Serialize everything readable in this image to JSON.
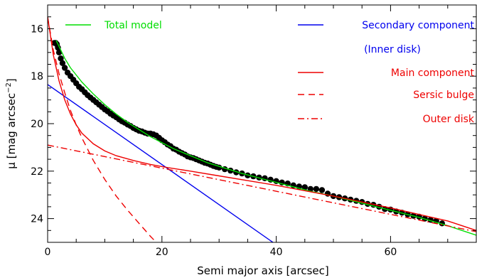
{
  "chart_data": {
    "type": "line",
    "xlabel": "Semi major axis [arcsec]",
    "ylabel_prefix": "μ [mag arcsec",
    "ylabel_exp": "−2",
    "ylabel_suffix": "]",
    "xlim": [
      0,
      75
    ],
    "ylim": [
      25,
      15
    ],
    "y_inverted": true,
    "xticks": [
      0,
      20,
      40,
      60
    ],
    "yticks": [
      16,
      18,
      20,
      22,
      24
    ],
    "x_minor_step": 5,
    "y_minor_step": 0.5,
    "grid": false,
    "legend": [
      {
        "label": "Total model",
        "color": "#00dd00",
        "dash": "solid",
        "position": "top-left"
      },
      {
        "label": "Secondary component",
        "color": "#0000ee",
        "dash": "solid",
        "position": "top-right"
      },
      {
        "label": "(Inner disk)",
        "color": "#0000ee",
        "dash": "none",
        "position": "top-right"
      },
      {
        "label": "Main component",
        "color": "#ee0000",
        "dash": "solid",
        "position": "top-right"
      },
      {
        "label": "Sersic bulge",
        "color": "#ee0000",
        "dash": "dashed",
        "position": "top-right"
      },
      {
        "label": "Outer disk",
        "color": "#ee0000",
        "dash": "dashdot",
        "position": "top-right"
      }
    ],
    "series": [
      {
        "name": "Observed profile",
        "kind": "scatter",
        "color": "#000000",
        "x": [
          1.2,
          1.4,
          1.6,
          1.8,
          2.0,
          2.3,
          2.6,
          3.0,
          3.5,
          4.0,
          4.5,
          5.0,
          5.5,
          6.0,
          6.5,
          7.0,
          7.5,
          8.0,
          8.5,
          9.0,
          9.5,
          10,
          10.5,
          11,
          11.5,
          12,
          12.5,
          13,
          13.5,
          14,
          14.5,
          15,
          15.5,
          16,
          16.5,
          17,
          17.5,
          18,
          18.5,
          19,
          19.5,
          20,
          20.5,
          21,
          21.5,
          22,
          22.5,
          23,
          23.5,
          24,
          24.5,
          25,
          25.5,
          26,
          26.5,
          27,
          27.5,
          28,
          28.5,
          29,
          29.5,
          30,
          31,
          32,
          33,
          34,
          35,
          36,
          37,
          38,
          39,
          40,
          41,
          42,
          43,
          44,
          45,
          46,
          47,
          48,
          49,
          50,
          51,
          52,
          53,
          54,
          55,
          56,
          57,
          58,
          59,
          60,
          61,
          62,
          63,
          64,
          65,
          66,
          67,
          68,
          69
        ],
        "y": [
          16.6,
          16.6,
          16.65,
          16.8,
          17.0,
          17.25,
          17.45,
          17.65,
          17.85,
          18.0,
          18.15,
          18.3,
          18.45,
          18.55,
          18.68,
          18.8,
          18.9,
          19.0,
          19.1,
          19.2,
          19.3,
          19.4,
          19.48,
          19.58,
          19.66,
          19.73,
          19.82,
          19.9,
          19.96,
          20.04,
          20.1,
          20.18,
          20.24,
          20.3,
          20.33,
          20.38,
          20.42,
          20.42,
          20.45,
          20.5,
          20.6,
          20.7,
          20.78,
          20.88,
          20.95,
          21.05,
          21.1,
          21.18,
          21.24,
          21.3,
          21.38,
          21.42,
          21.45,
          21.5,
          21.55,
          21.6,
          21.65,
          21.68,
          21.73,
          21.78,
          21.82,
          21.85,
          21.92,
          21.98,
          22.05,
          22.1,
          22.18,
          22.22,
          22.27,
          22.3,
          22.36,
          22.42,
          22.48,
          22.52,
          22.6,
          22.65,
          22.68,
          22.75,
          22.75,
          22.8,
          22.95,
          23.05,
          23.1,
          23.15,
          23.2,
          23.25,
          23.3,
          23.38,
          23.42,
          23.5,
          23.6,
          23.62,
          23.7,
          23.75,
          23.82,
          23.88,
          23.92,
          24.0,
          24.05,
          24.1,
          24.2
        ]
      },
      {
        "name": "Total model",
        "kind": "line",
        "color": "#00dd00",
        "dash": "solid",
        "x": [
          1.5,
          2,
          2.5,
          3,
          4,
          5,
          6,
          8,
          10,
          12,
          14,
          16,
          18,
          20,
          22,
          24,
          26,
          28,
          30,
          34,
          38,
          42,
          46,
          50,
          55,
          60,
          65,
          70,
          75
        ],
        "y": [
          16.5,
          16.75,
          17.0,
          17.25,
          17.65,
          17.95,
          18.25,
          18.75,
          19.2,
          19.6,
          19.95,
          20.25,
          20.55,
          20.8,
          21.05,
          21.25,
          21.45,
          21.65,
          21.8,
          22.1,
          22.35,
          22.6,
          22.85,
          23.05,
          23.35,
          23.65,
          23.95,
          24.3,
          24.7
        ]
      },
      {
        "name": "Secondary component",
        "kind": "line",
        "color": "#0000ee",
        "dash": "solid",
        "x": [
          0,
          40
        ],
        "y": [
          18.35,
          25.1
        ]
      },
      {
        "name": "Main component",
        "kind": "line",
        "color": "#ee0000",
        "dash": "solid",
        "x": [
          0,
          1,
          2,
          3,
          4,
          5,
          6,
          8,
          10,
          12,
          15,
          18,
          21,
          25,
          30,
          40,
          50,
          60,
          70,
          75
        ],
        "y": [
          15.5,
          17.1,
          18.2,
          19.0,
          19.6,
          20.05,
          20.4,
          20.85,
          21.15,
          21.35,
          21.55,
          21.72,
          21.85,
          22.0,
          22.2,
          22.6,
          23.05,
          23.55,
          24.1,
          24.5
        ]
      },
      {
        "name": "Sersic bulge",
        "kind": "line",
        "color": "#ee0000",
        "dash": "dashed",
        "x": [
          0,
          1,
          2,
          3,
          4,
          5,
          6,
          8,
          10,
          12,
          14,
          16,
          18,
          19
        ],
        "y": [
          15.5,
          16.9,
          17.9,
          18.7,
          19.45,
          20.05,
          20.6,
          21.55,
          22.35,
          23.05,
          23.65,
          24.2,
          24.75,
          25.0
        ]
      },
      {
        "name": "Outer disk",
        "kind": "line",
        "color": "#ee0000",
        "dash": "dashdot",
        "x": [
          0,
          75
        ],
        "y": [
          20.9,
          24.55
        ]
      }
    ]
  }
}
